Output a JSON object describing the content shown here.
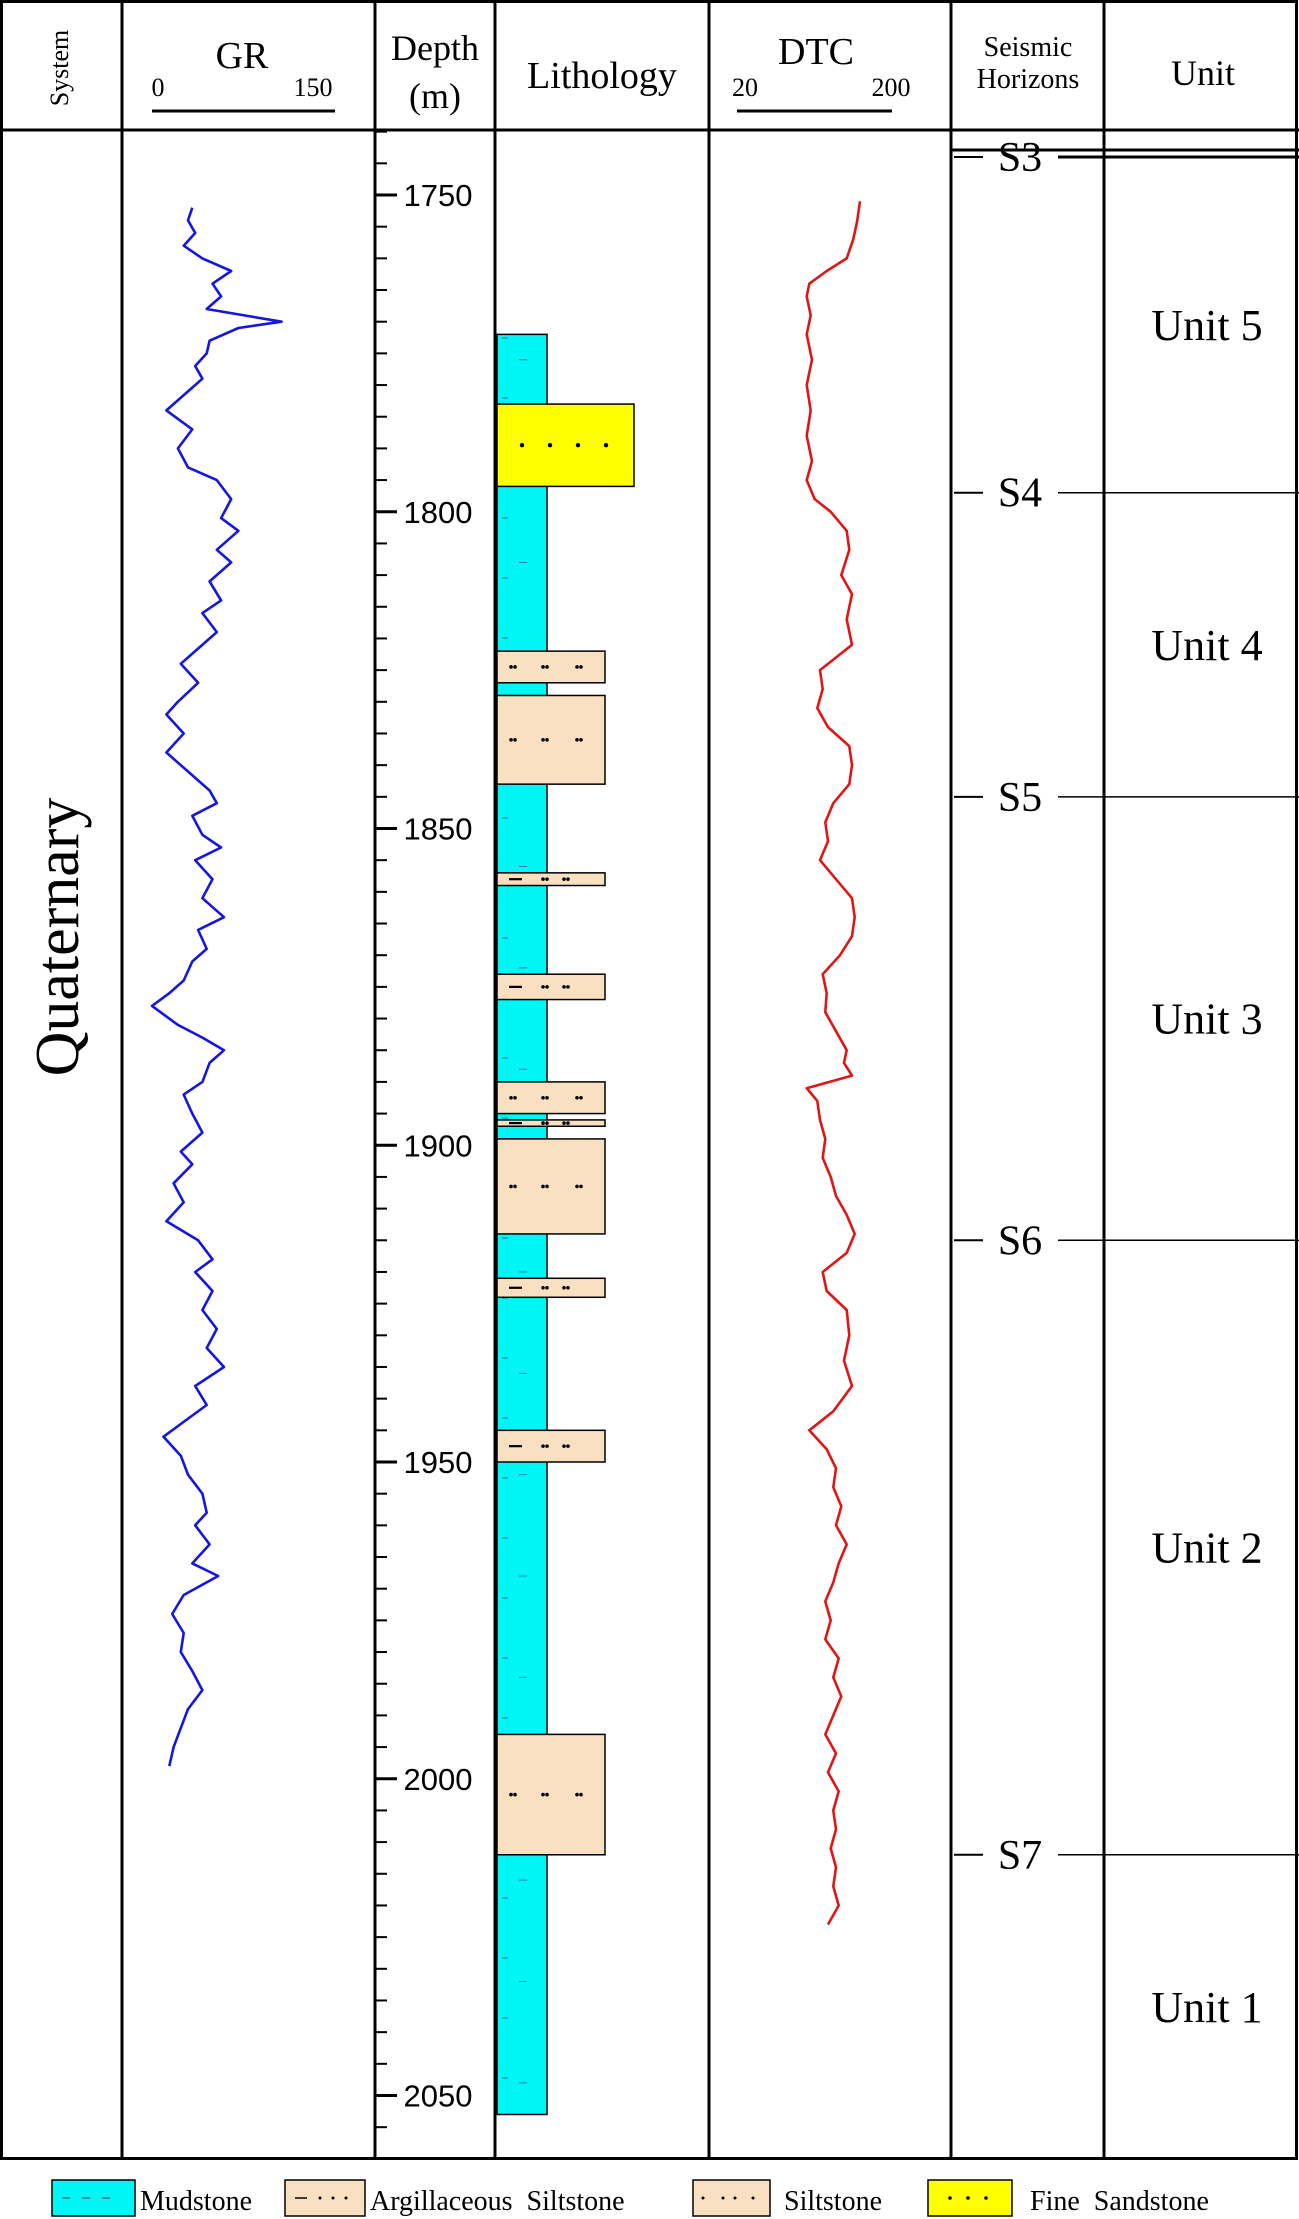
{
  "headers": {
    "system": "System",
    "gr": "GR",
    "gr_scale_min": "0",
    "gr_scale_max": "150",
    "depth_line1": "Depth",
    "depth_line2": "(m)",
    "lithology": "Lithology",
    "dtc": "DTC",
    "dtc_scale_min": "20",
    "dtc_scale_max": "200",
    "seismic_line1": "Seismic",
    "seismic_line2": "Horizons",
    "unit": "Unit"
  },
  "system_label": "Quaternary",
  "depth_axis": {
    "min": 1740,
    "max": 2060,
    "major_ticks": [
      1750,
      1800,
      1850,
      1900,
      1950,
      2000,
      2050
    ],
    "minor_step": 5
  },
  "horizons": [
    {
      "name": "S3",
      "depth": 1744
    },
    {
      "name": "S4",
      "depth": 1797
    },
    {
      "name": "S5",
      "depth": 1845
    },
    {
      "name": "S6",
      "depth": 1915
    },
    {
      "name": "S7",
      "depth": 2012
    }
  ],
  "units": [
    {
      "name": "Unit 5",
      "top": 1744,
      "base": 1797
    },
    {
      "name": "Unit 4",
      "top": 1797,
      "base": 1845
    },
    {
      "name": "Unit 3",
      "top": 1845,
      "base": 1915
    },
    {
      "name": "Unit 2",
      "top": 1915,
      "base": 2012
    },
    {
      "name": "Unit 1",
      "top": 2012,
      "base": 2060
    }
  ],
  "lithology": {
    "column_top": 1772,
    "column_base": 2053,
    "beds": [
      {
        "type": "fine_sandstone",
        "top": 1783,
        "base": 1796
      },
      {
        "type": "siltstone",
        "top": 1822,
        "base": 1827
      },
      {
        "type": "siltstone",
        "top": 1829,
        "base": 1843
      },
      {
        "type": "argillaceous_siltstone",
        "top": 1857,
        "base": 1859
      },
      {
        "type": "argillaceous_siltstone",
        "top": 1873,
        "base": 1877
      },
      {
        "type": "siltstone",
        "top": 1890,
        "base": 1895
      },
      {
        "type": "argillaceous_siltstone",
        "top": 1896,
        "base": 1897
      },
      {
        "type": "siltstone",
        "top": 1899,
        "base": 1914
      },
      {
        "type": "argillaceous_siltstone",
        "top": 1921,
        "base": 1924
      },
      {
        "type": "argillaceous_siltstone",
        "top": 1945,
        "base": 1950
      },
      {
        "type": "siltstone",
        "top": 1993,
        "base": 2012
      }
    ]
  },
  "gr_curve": {
    "scale": [
      0,
      150
    ],
    "points": [
      [
        1752,
        28
      ],
      [
        1754,
        25
      ],
      [
        1756,
        30
      ],
      [
        1758,
        22
      ],
      [
        1760,
        35
      ],
      [
        1762,
        55
      ],
      [
        1764,
        42
      ],
      [
        1766,
        48
      ],
      [
        1768,
        38
      ],
      [
        1770,
        90
      ],
      [
        1771,
        60
      ],
      [
        1773,
        40
      ],
      [
        1775,
        38
      ],
      [
        1777,
        30
      ],
      [
        1779,
        35
      ],
      [
        1781,
        25
      ],
      [
        1784,
        10
      ],
      [
        1787,
        28
      ],
      [
        1790,
        18
      ],
      [
        1793,
        25
      ],
      [
        1795,
        45
      ],
      [
        1798,
        55
      ],
      [
        1801,
        48
      ],
      [
        1803,
        60
      ],
      [
        1806,
        45
      ],
      [
        1808,
        55
      ],
      [
        1811,
        40
      ],
      [
        1814,
        48
      ],
      [
        1816,
        35
      ],
      [
        1819,
        45
      ],
      [
        1822,
        30
      ],
      [
        1824,
        20
      ],
      [
        1827,
        32
      ],
      [
        1830,
        18
      ],
      [
        1832,
        10
      ],
      [
        1835,
        22
      ],
      [
        1838,
        10
      ],
      [
        1841,
        25
      ],
      [
        1844,
        40
      ],
      [
        1846,
        45
      ],
      [
        1848,
        28
      ],
      [
        1851,
        35
      ],
      [
        1853,
        48
      ],
      [
        1855,
        30
      ],
      [
        1858,
        42
      ],
      [
        1861,
        35
      ],
      [
        1864,
        50
      ],
      [
        1866,
        32
      ],
      [
        1869,
        38
      ],
      [
        1871,
        28
      ],
      [
        1874,
        22
      ],
      [
        1876,
        12
      ],
      [
        1878,
        0
      ],
      [
        1881,
        18
      ],
      [
        1883,
        35
      ],
      [
        1885,
        50
      ],
      [
        1887,
        40
      ],
      [
        1890,
        35
      ],
      [
        1892,
        22
      ],
      [
        1895,
        28
      ],
      [
        1898,
        35
      ],
      [
        1901,
        20
      ],
      [
        1903,
        28
      ],
      [
        1906,
        15
      ],
      [
        1909,
        22
      ],
      [
        1912,
        10
      ],
      [
        1915,
        32
      ],
      [
        1918,
        42
      ],
      [
        1920,
        30
      ],
      [
        1923,
        42
      ],
      [
        1926,
        35
      ],
      [
        1929,
        45
      ],
      [
        1932,
        38
      ],
      [
        1935,
        50
      ],
      [
        1938,
        30
      ],
      [
        1941,
        38
      ],
      [
        1944,
        20
      ],
      [
        1946,
        8
      ],
      [
        1949,
        20
      ],
      [
        1952,
        25
      ],
      [
        1955,
        35
      ],
      [
        1958,
        38
      ],
      [
        1960,
        30
      ],
      [
        1963,
        40
      ],
      [
        1966,
        28
      ],
      [
        1968,
        46
      ],
      [
        1971,
        22
      ],
      [
        1974,
        14
      ],
      [
        1977,
        22
      ],
      [
        1980,
        20
      ],
      [
        1983,
        28
      ],
      [
        1986,
        35
      ],
      [
        1989,
        25
      ],
      [
        1992,
        20
      ],
      [
        1995,
        15
      ],
      [
        1998,
        12
      ]
    ]
  },
  "dtc_curve": {
    "scale": [
      20,
      200
    ],
    "points": [
      [
        1751,
        110
      ],
      [
        1754,
        108
      ],
      [
        1757,
        105
      ],
      [
        1760,
        100
      ],
      [
        1762,
        85
      ],
      [
        1764,
        72
      ],
      [
        1766,
        70
      ],
      [
        1769,
        73
      ],
      [
        1772,
        70
      ],
      [
        1776,
        74
      ],
      [
        1780,
        70
      ],
      [
        1784,
        73
      ],
      [
        1788,
        70
      ],
      [
        1792,
        74
      ],
      [
        1795,
        70
      ],
      [
        1798,
        76
      ],
      [
        1800,
        88
      ],
      [
        1803,
        100
      ],
      [
        1806,
        102
      ],
      [
        1810,
        96
      ],
      [
        1813,
        104
      ],
      [
        1817,
        100
      ],
      [
        1821,
        104
      ],
      [
        1823,
        92
      ],
      [
        1825,
        80
      ],
      [
        1828,
        82
      ],
      [
        1831,
        78
      ],
      [
        1834,
        86
      ],
      [
        1837,
        102
      ],
      [
        1840,
        104
      ],
      [
        1843,
        102
      ],
      [
        1846,
        90
      ],
      [
        1849,
        84
      ],
      [
        1852,
        86
      ],
      [
        1855,
        80
      ],
      [
        1858,
        92
      ],
      [
        1861,
        104
      ],
      [
        1864,
        106
      ],
      [
        1867,
        104
      ],
      [
        1870,
        95
      ],
      [
        1873,
        82
      ],
      [
        1876,
        85
      ],
      [
        1879,
        84
      ],
      [
        1882,
        92
      ],
      [
        1885,
        100
      ],
      [
        1887,
        98
      ],
      [
        1889,
        104
      ],
      [
        1891,
        70
      ],
      [
        1893,
        78
      ],
      [
        1896,
        80
      ],
      [
        1899,
        84
      ],
      [
        1902,
        82
      ],
      [
        1905,
        88
      ],
      [
        1908,
        92
      ],
      [
        1911,
        100
      ],
      [
        1914,
        106
      ],
      [
        1917,
        100
      ],
      [
        1920,
        82
      ],
      [
        1923,
        85
      ],
      [
        1926,
        100
      ],
      [
        1930,
        102
      ],
      [
        1934,
        98
      ],
      [
        1938,
        104
      ],
      [
        1942,
        90
      ],
      [
        1945,
        72
      ],
      [
        1948,
        85
      ],
      [
        1951,
        92
      ],
      [
        1954,
        90
      ],
      [
        1957,
        96
      ],
      [
        1960,
        92
      ],
      [
        1963,
        100
      ],
      [
        1966,
        94
      ],
      [
        1969,
        90
      ],
      [
        1972,
        84
      ],
      [
        1975,
        88
      ],
      [
        1978,
        84
      ],
      [
        1981,
        94
      ],
      [
        1984,
        90
      ],
      [
        1987,
        96
      ],
      [
        1990,
        90
      ],
      [
        1993,
        84
      ],
      [
        1996,
        92
      ],
      [
        1999,
        86
      ],
      [
        2002,
        94
      ],
      [
        2005,
        90
      ],
      [
        2008,
        92
      ],
      [
        2011,
        88
      ],
      [
        2014,
        92
      ],
      [
        2017,
        90
      ],
      [
        2020,
        94
      ],
      [
        2023,
        86
      ]
    ]
  },
  "legend": [
    {
      "type": "mudstone",
      "label": "Mudstone"
    },
    {
      "type": "argillaceous_siltstone",
      "label": "Argillaceous  Siltstone"
    },
    {
      "type": "siltstone",
      "label": "Siltstone"
    },
    {
      "type": "fine_sandstone",
      "label": "Fine  Sandstone"
    }
  ],
  "colors": {
    "gr": "#1515e0",
    "dtc": "#e01515",
    "mudstone": "#00f5f5",
    "silt": "#f8e0c0",
    "fine_sandstone": "#ffff00",
    "line": "#000000"
  }
}
